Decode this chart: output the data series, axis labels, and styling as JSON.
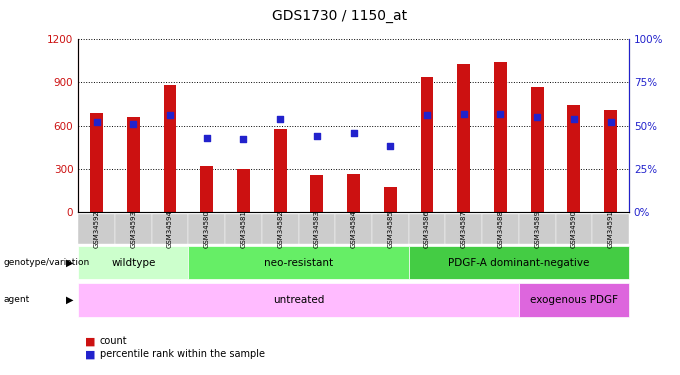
{
  "title": "GDS1730 / 1150_at",
  "samples": [
    "GSM34592",
    "GSM34593",
    "GSM34594",
    "GSM34580",
    "GSM34581",
    "GSM34582",
    "GSM34583",
    "GSM34584",
    "GSM34585",
    "GSM34586",
    "GSM34587",
    "GSM34588",
    "GSM34589",
    "GSM34590",
    "GSM34591"
  ],
  "counts": [
    690,
    660,
    880,
    320,
    295,
    580,
    255,
    265,
    175,
    940,
    1030,
    1040,
    870,
    740,
    710
  ],
  "percentiles": [
    52,
    51,
    56,
    43,
    42,
    54,
    44,
    46,
    38,
    56,
    57,
    57,
    55,
    54,
    52
  ],
  "ylim_left": [
    0,
    1200
  ],
  "ylim_right": [
    0,
    100
  ],
  "yticks_left": [
    0,
    300,
    600,
    900,
    1200
  ],
  "yticks_right": [
    0,
    25,
    50,
    75,
    100
  ],
  "bar_color": "#cc1111",
  "dot_color": "#2222cc",
  "genotype_groups": [
    {
      "label": "wildtype",
      "start": 0,
      "end": 3,
      "color": "#ccffcc"
    },
    {
      "label": "neo-resistant",
      "start": 3,
      "end": 9,
      "color": "#66ee66"
    },
    {
      "label": "PDGF-A dominant-negative",
      "start": 9,
      "end": 15,
      "color": "#44cc44"
    }
  ],
  "agent_groups": [
    {
      "label": "untreated",
      "start": 0,
      "end": 12,
      "color": "#ffbbff"
    },
    {
      "label": "exogenous PDGF",
      "start": 12,
      "end": 15,
      "color": "#dd66dd"
    }
  ],
  "legend_count_color": "#cc1111",
  "legend_pct_color": "#2222cc",
  "left_label_color": "#cc1111",
  "right_label_color": "#2222cc",
  "grid_color": "#000000",
  "background_color": "#ffffff",
  "plot_bg_color": "#ffffff",
  "tick_label_bg": "#cccccc"
}
